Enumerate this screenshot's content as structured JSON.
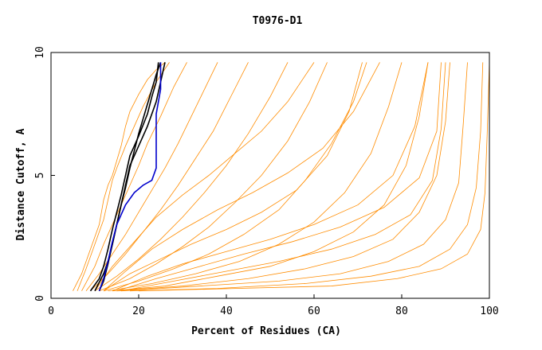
{
  "chart_data": {
    "type": "line",
    "title": "T0976-D1",
    "xlabel": "Percent of Residues (CA)",
    "ylabel": "Distance Cutoff, A",
    "xlim": [
      0,
      100
    ],
    "ylim": [
      0,
      10
    ],
    "x_ticks": [
      "0",
      "20",
      "40",
      "60",
      "80",
      "100"
    ],
    "y_ticks": [
      "0",
      "5",
      "10"
    ],
    "grid": false,
    "legend": "none",
    "colors": {
      "highlight_black": "#000000",
      "highlight_blue": "#0000cc",
      "others": "#ff8c00"
    },
    "series": [
      {
        "color": "#000000",
        "x": [
          10,
          12,
          13,
          14,
          15,
          16,
          17,
          18,
          19,
          20,
          21,
          22,
          23,
          24,
          25
        ],
        "y": [
          0.3,
          1.0,
          1.5,
          2.2,
          3.0,
          3.8,
          4.5,
          5.3,
          6.0,
          6.7,
          7.3,
          7.9,
          8.5,
          9.1,
          9.6
        ]
      },
      {
        "color": "#000000",
        "x": [
          9,
          11,
          12,
          13,
          14,
          15,
          16,
          17,
          18,
          20,
          22,
          23,
          24,
          24.5
        ],
        "y": [
          0.3,
          0.8,
          1.3,
          2.0,
          2.8,
          3.5,
          4.2,
          5.0,
          5.8,
          6.6,
          7.5,
          8.2,
          8.8,
          9.6
        ]
      },
      {
        "color": "#000000",
        "x": [
          11,
          12,
          13,
          14,
          15,
          16,
          17,
          18,
          20,
          22,
          24,
          25,
          26
        ],
        "y": [
          0.3,
          0.7,
          1.4,
          2.2,
          3.0,
          3.8,
          4.6,
          5.4,
          6.2,
          7.0,
          8.0,
          8.8,
          9.6
        ]
      },
      {
        "color": "#0000cc",
        "x": [
          11,
          12,
          13,
          14,
          15,
          17,
          19,
          21,
          23,
          24,
          24,
          24,
          25,
          25
        ],
        "y": [
          0.3,
          0.8,
          1.5,
          2.3,
          3.0,
          3.8,
          4.3,
          4.6,
          4.8,
          5.3,
          6.5,
          7.5,
          8.5,
          9.6
        ]
      },
      {
        "color": "#ff8c00",
        "x": [
          5,
          7,
          9,
          11,
          12,
          13,
          14,
          15,
          16,
          17,
          18,
          20,
          22,
          24,
          26
        ],
        "y": [
          0.3,
          1.0,
          2.0,
          3.0,
          4.0,
          4.6,
          5.0,
          5.6,
          6.2,
          7.0,
          7.6,
          8.3,
          8.9,
          9.3,
          9.6
        ]
      },
      {
        "color": "#ff8c00",
        "x": [
          6,
          8,
          10,
          12,
          13,
          14,
          15,
          17,
          19,
          21,
          24,
          27
        ],
        "y": [
          0.3,
          1.2,
          2.2,
          3.2,
          4.0,
          4.8,
          5.3,
          6.2,
          7.0,
          7.8,
          8.8,
          9.6
        ]
      },
      {
        "color": "#ff8c00",
        "x": [
          7,
          10,
          12,
          14,
          16,
          18,
          20,
          22,
          25,
          28,
          31
        ],
        "y": [
          0.3,
          1.3,
          2.2,
          3.0,
          3.8,
          4.6,
          5.4,
          6.3,
          7.4,
          8.6,
          9.6
        ]
      },
      {
        "color": "#ff8c00",
        "x": [
          8,
          11,
          14,
          17,
          20,
          23,
          26,
          29,
          32,
          35,
          38
        ],
        "y": [
          0.3,
          1.0,
          1.8,
          2.6,
          3.5,
          4.4,
          5.3,
          6.3,
          7.4,
          8.5,
          9.6
        ]
      },
      {
        "color": "#ff8c00",
        "x": [
          9,
          13,
          17,
          21,
          25,
          29,
          33,
          37,
          41,
          45
        ],
        "y": [
          0.3,
          1.0,
          1.8,
          2.7,
          3.6,
          4.6,
          5.7,
          6.8,
          8.2,
          9.6
        ]
      },
      {
        "color": "#ff8c00",
        "x": [
          10,
          15,
          20,
          25,
          30,
          35,
          40,
          45,
          50,
          54
        ],
        "y": [
          0.3,
          0.9,
          1.6,
          2.4,
          3.3,
          4.3,
          5.4,
          6.7,
          8.2,
          9.6
        ]
      },
      {
        "color": "#ff8c00",
        "x": [
          11,
          18,
          24,
          30,
          36,
          42,
          48,
          54,
          59,
          63
        ],
        "y": [
          0.3,
          0.8,
          1.4,
          2.1,
          2.9,
          3.9,
          5.0,
          6.4,
          8.0,
          9.6
        ]
      },
      {
        "color": "#ff8c00",
        "x": [
          12,
          20,
          28,
          36,
          44,
          52,
          58,
          64,
          69,
          72
        ],
        "y": [
          0.3,
          0.7,
          1.2,
          1.8,
          2.6,
          3.6,
          4.8,
          6.3,
          8.0,
          9.6
        ]
      },
      {
        "color": "#ff8c00",
        "x": [
          13,
          23,
          33,
          43,
          52,
          60,
          67,
          73,
          77,
          80
        ],
        "y": [
          0.3,
          0.6,
          1.0,
          1.5,
          2.2,
          3.1,
          4.3,
          5.9,
          7.8,
          9.6
        ]
      },
      {
        "color": "#ff8c00",
        "x": [
          14,
          26,
          38,
          50,
          60,
          69,
          76,
          81,
          84,
          86
        ],
        "y": [
          0.3,
          0.5,
          0.9,
          1.3,
          1.9,
          2.7,
          3.8,
          5.4,
          7.4,
          9.6
        ]
      },
      {
        "color": "#ff8c00",
        "x": [
          15,
          30,
          45,
          58,
          69,
          78,
          84,
          88,
          90,
          91
        ],
        "y": [
          0.3,
          0.5,
          0.8,
          1.2,
          1.7,
          2.4,
          3.5,
          5.0,
          7.2,
          9.6
        ]
      },
      {
        "color": "#ff8c00",
        "x": [
          16,
          34,
          52,
          66,
          77,
          85,
          90,
          93,
          94,
          95
        ],
        "y": [
          0.3,
          0.5,
          0.7,
          1.0,
          1.5,
          2.2,
          3.2,
          4.7,
          7.0,
          9.6
        ]
      },
      {
        "color": "#ff8c00",
        "x": [
          18,
          38,
          58,
          73,
          84,
          91,
          95,
          97,
          98,
          98.5
        ],
        "y": [
          0.3,
          0.4,
          0.6,
          0.9,
          1.3,
          2.0,
          3.0,
          4.5,
          6.8,
          9.6
        ]
      },
      {
        "color": "#ff8c00",
        "x": [
          20,
          42,
          64,
          79,
          89,
          95,
          98,
          99,
          99.5,
          100
        ],
        "y": [
          0.3,
          0.4,
          0.5,
          0.8,
          1.2,
          1.8,
          2.8,
          4.3,
          6.7,
          9.6
        ]
      },
      {
        "color": "#ff8c00",
        "x": [
          12,
          18,
          25,
          32,
          40,
          48,
          56,
          63,
          68,
          71
        ],
        "y": [
          0.3,
          1.0,
          1.6,
          2.2,
          2.8,
          3.5,
          4.4,
          5.8,
          7.6,
          9.6
        ]
      },
      {
        "color": "#ff8c00",
        "x": [
          14,
          22,
          30,
          40,
          50,
          60,
          70,
          78,
          83,
          86
        ],
        "y": [
          0.3,
          0.9,
          1.4,
          1.9,
          2.4,
          3.0,
          3.8,
          5.0,
          7.0,
          9.6
        ]
      },
      {
        "color": "#ff8c00",
        "x": [
          16,
          28,
          40,
          52,
          64,
          74,
          82,
          87,
          89,
          90
        ],
        "y": [
          0.3,
          0.7,
          1.1,
          1.5,
          2.0,
          2.6,
          3.4,
          4.8,
          6.9,
          9.6
        ]
      },
      {
        "color": "#ff8c00",
        "x": [
          10,
          14,
          19,
          24,
          30,
          36,
          42,
          48,
          54,
          60
        ],
        "y": [
          0.3,
          1.3,
          2.3,
          3.3,
          4.2,
          5.0,
          5.9,
          6.8,
          8.0,
          9.6
        ]
      },
      {
        "color": "#ff8c00",
        "x": [
          12,
          17,
          23,
          30,
          38,
          46,
          54,
          62,
          69,
          75
        ],
        "y": [
          0.3,
          1.1,
          2.0,
          2.8,
          3.6,
          4.3,
          5.1,
          6.1,
          7.6,
          9.6
        ]
      },
      {
        "color": "#ff8c00",
        "x": [
          15,
          24,
          34,
          44,
          55,
          66,
          76,
          84,
          88,
          89
        ],
        "y": [
          0.3,
          0.8,
          1.3,
          1.8,
          2.3,
          2.9,
          3.7,
          4.9,
          6.8,
          9.6
        ]
      }
    ]
  }
}
